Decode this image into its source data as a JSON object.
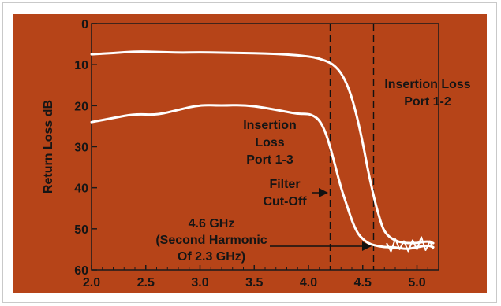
{
  "chart_data": {
    "type": "line",
    "title": "",
    "xlabel": "",
    "ylabel": "Return Loss dB",
    "xlim": [
      2.0,
      5.2
    ],
    "ylim": [
      0,
      60
    ],
    "y_inverted": true,
    "x_ticks": [
      "2.0",
      "2.5",
      "3.0",
      "3.5",
      "4.0",
      "4.5",
      "5.0"
    ],
    "y_ticks": [
      "0",
      "10",
      "20",
      "30",
      "40",
      "50",
      "60"
    ],
    "grid": false,
    "background_color": "#b64418",
    "trace_color": "#ffffff",
    "series": [
      {
        "name": "Insertion Loss Port 1-2",
        "x": [
          2.0,
          2.2,
          2.4,
          2.6,
          2.8,
          3.0,
          3.2,
          3.4,
          3.6,
          3.8,
          4.0,
          4.1,
          4.2,
          4.25,
          4.3,
          4.35,
          4.4,
          4.45,
          4.5,
          4.55,
          4.6,
          4.65,
          4.7,
          4.8,
          4.9,
          5.0,
          5.1,
          5.15
        ],
        "y": [
          7.5,
          7.2,
          6.8,
          6.9,
          7.1,
          7.0,
          7.1,
          7.2,
          7.3,
          7.5,
          8.0,
          8.5,
          9.5,
          10.5,
          12.0,
          14.5,
          18.0,
          23.0,
          29.0,
          36.0,
          42.0,
          47.0,
          51.0,
          53.0,
          53.5,
          53.5,
          53.0,
          53.5
        ]
      },
      {
        "name": "Insertion Loss Port 1-3",
        "x": [
          2.0,
          2.2,
          2.4,
          2.6,
          2.8,
          3.0,
          3.2,
          3.4,
          3.6,
          3.8,
          3.9,
          4.0,
          4.05,
          4.1,
          4.15,
          4.2,
          4.25,
          4.3,
          4.35,
          4.4,
          4.45,
          4.5,
          4.55,
          4.6,
          4.7,
          4.8,
          4.9,
          5.0,
          5.1,
          5.15
        ],
        "y": [
          24.0,
          23.0,
          22.0,
          22.3,
          21.0,
          19.8,
          20.0,
          19.8,
          20.5,
          21.5,
          22.0,
          22.0,
          22.5,
          23.5,
          26.0,
          30.0,
          35.0,
          40.0,
          44.0,
          48.0,
          51.0,
          52.5,
          53.5,
          54.0,
          54.5,
          54.5,
          55.0,
          54.5,
          54.0,
          54.5
        ]
      }
    ],
    "reference_lines": [
      {
        "axis": "x",
        "value": 4.2,
        "style": "dashed"
      },
      {
        "axis": "x",
        "value": 4.6,
        "style": "dashed"
      }
    ],
    "annotations": [
      {
        "key": "port12",
        "lines": [
          "Insertion Loss",
          "Port 1-2"
        ]
      },
      {
        "key": "port13",
        "lines": [
          "Insertion",
          "Loss",
          "Port 1-3"
        ]
      },
      {
        "key": "cutoff",
        "lines": [
          "Filter",
          "Cut-Off"
        ]
      },
      {
        "key": "harmonic",
        "lines": [
          "4.6 GHz",
          "(Second Harmonic",
          "Of 2.3 GHz)"
        ]
      }
    ]
  }
}
